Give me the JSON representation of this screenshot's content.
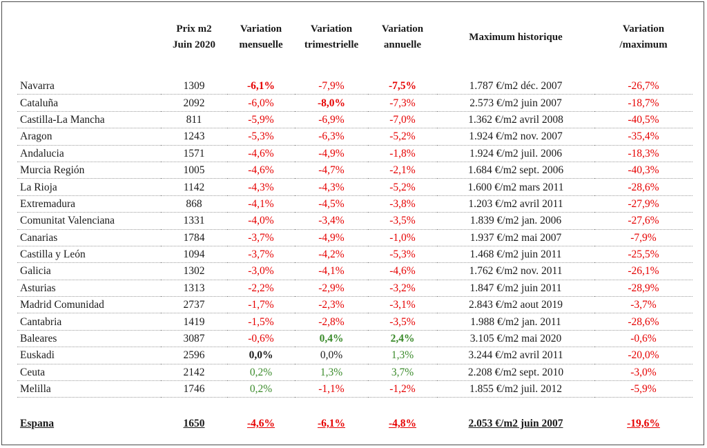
{
  "headers": {
    "region": "",
    "price": [
      "Prix m2",
      "Juin 2020"
    ],
    "monthly": [
      "Variation",
      "mensuelle"
    ],
    "quarterly": [
      "Variation",
      "trimestrielle"
    ],
    "annual": [
      "Variation",
      "annuelle"
    ],
    "max_hist": "Maximum historique",
    "var_max": [
      "Variation",
      "/maximum"
    ]
  },
  "rows": [
    {
      "region": "Navarra",
      "price": "1309",
      "monthly": "-6,1%",
      "quarterly": "-7,9%",
      "annual": "-7,5%",
      "max": "1.787 €/m2 déc. 2007",
      "var_max": "-26,7%",
      "colors": [
        "neg",
        "neg",
        "neg",
        "neg"
      ],
      "bold": [
        true,
        false,
        true,
        false
      ]
    },
    {
      "region": "Cataluña",
      "price": "2092",
      "monthly": "-6,0%",
      "quarterly": "-8,0%",
      "annual": "-7,3%",
      "max": "2.573 €/m2 juin 2007",
      "var_max": "-18,7%",
      "colors": [
        "neg",
        "neg",
        "neg",
        "neg"
      ],
      "bold": [
        false,
        true,
        false,
        false
      ]
    },
    {
      "region": "Castilla-La Mancha",
      "price": "811",
      "monthly": "-5,9%",
      "quarterly": "-6,9%",
      "annual": "-7,0%",
      "max": "1.362 €/m2 avril 2008",
      "var_max": "-40,5%",
      "colors": [
        "neg",
        "neg",
        "neg",
        "neg"
      ],
      "bold": [
        false,
        false,
        false,
        false
      ]
    },
    {
      "region": "Aragon",
      "price": "1243",
      "monthly": "-5,3%",
      "quarterly": "-6,3%",
      "annual": "-5,2%",
      "max": "1.924 €/m2 nov. 2007",
      "var_max": "-35,4%",
      "colors": [
        "neg",
        "neg",
        "neg",
        "neg"
      ],
      "bold": [
        false,
        false,
        false,
        false
      ]
    },
    {
      "region": "Andalucia",
      "price": "1571",
      "monthly": "-4,6%",
      "quarterly": "-4,9%",
      "annual": "-1,8%",
      "max": "1.924 €/m2 juil. 2006",
      "var_max": "-18,3%",
      "colors": [
        "neg",
        "neg",
        "neg",
        "neg"
      ],
      "bold": [
        false,
        false,
        false,
        false
      ]
    },
    {
      "region": "Murcia Región",
      "price": "1005",
      "monthly": "-4,6%",
      "quarterly": "-4,7%",
      "annual": "-2,1%",
      "max": "1.684 €/m2 sept. 2006",
      "var_max": "-40,3%",
      "colors": [
        "neg",
        "neg",
        "neg",
        "neg"
      ],
      "bold": [
        false,
        false,
        false,
        false
      ]
    },
    {
      "region": "La Rioja",
      "price": "1142",
      "monthly": "-4,3%",
      "quarterly": "-4,3%",
      "annual": "-5,2%",
      "max": "1.600 €/m2 mars 2011",
      "var_max": "-28,6%",
      "colors": [
        "neg",
        "neg",
        "neg",
        "neg"
      ],
      "bold": [
        false,
        false,
        false,
        false
      ]
    },
    {
      "region": "Extremadura",
      "price": "868",
      "monthly": "-4,1%",
      "quarterly": "-4,5%",
      "annual": "-3,8%",
      "max": "1.203 €/m2 avril 2011",
      "var_max": "-27,9%",
      "colors": [
        "neg",
        "neg",
        "neg",
        "neg"
      ],
      "bold": [
        false,
        false,
        false,
        false
      ]
    },
    {
      "region": "Comunitat Valenciana",
      "price": "1331",
      "monthly": "-4,0%",
      "quarterly": "-3,4%",
      "annual": "-3,5%",
      "max": "1.839 €/m2 jan. 2006",
      "var_max": "-27,6%",
      "colors": [
        "neg",
        "neg",
        "neg",
        "neg"
      ],
      "bold": [
        false,
        false,
        false,
        false
      ]
    },
    {
      "region": "Canarias",
      "price": "1784",
      "monthly": "-3,7%",
      "quarterly": "-4,9%",
      "annual": "-1,0%",
      "max": "1.937 €/m2 mai 2007",
      "var_max": "-7,9%",
      "colors": [
        "neg",
        "neg",
        "neg",
        "neg"
      ],
      "bold": [
        false,
        false,
        false,
        false
      ]
    },
    {
      "region": "Castilla y León",
      "price": "1094",
      "monthly": "-3,7%",
      "quarterly": "-4,2%",
      "annual": "-5,3%",
      "max": "1.468 €/m2 juin 2011",
      "var_max": "-25,5%",
      "colors": [
        "neg",
        "neg",
        "neg",
        "neg"
      ],
      "bold": [
        false,
        false,
        false,
        false
      ]
    },
    {
      "region": "Galicia",
      "price": "1302",
      "monthly": "-3,0%",
      "quarterly": "-4,1%",
      "annual": "-4,6%",
      "max": "1.762 €/m2 nov. 2011",
      "var_max": "-26,1%",
      "colors": [
        "neg",
        "neg",
        "neg",
        "neg"
      ],
      "bold": [
        false,
        false,
        false,
        false
      ]
    },
    {
      "region": "Asturias",
      "price": "1313",
      "monthly": "-2,2%",
      "quarterly": "-2,9%",
      "annual": "-3,2%",
      "max": "1.847 €/m2 juin 2011",
      "var_max": "-28,9%",
      "colors": [
        "neg",
        "neg",
        "neg",
        "neg"
      ],
      "bold": [
        false,
        false,
        false,
        false
      ]
    },
    {
      "region": "Madrid Comunidad",
      "price": "2737",
      "monthly": "-1,7%",
      "quarterly": "-2,3%",
      "annual": "-3,1%",
      "max": "2.843 €/m2 aout 2019",
      "var_max": "-3,7%",
      "colors": [
        "neg",
        "neg",
        "neg",
        "neg"
      ],
      "bold": [
        false,
        false,
        false,
        false
      ]
    },
    {
      "region": "Cantabria",
      "price": "1419",
      "monthly": "-1,5%",
      "quarterly": "-2,8%",
      "annual": "-3,5%",
      "max": "1.988 €/m2 jan. 2011",
      "var_max": "-28,6%",
      "colors": [
        "neg",
        "neg",
        "neg",
        "neg"
      ],
      "bold": [
        false,
        false,
        false,
        false
      ]
    },
    {
      "region": "Baleares",
      "price": "3087",
      "monthly": "-0,6%",
      "quarterly": "0,4%",
      "annual": "2,4%",
      "max": "3.105 €/m2 mai 2020",
      "var_max": "-0,6%",
      "colors": [
        "neg",
        "pos",
        "pos",
        "neg"
      ],
      "bold": [
        false,
        true,
        true,
        false
      ]
    },
    {
      "region": "Euskadi",
      "price": "2596",
      "monthly": "0,0%",
      "quarterly": "0,0%",
      "annual": "1,3%",
      "max": "3.244 €/m2 avril 2011",
      "var_max": "-20,0%",
      "colors": [
        "zero",
        "zero",
        "pos",
        "neg"
      ],
      "bold": [
        true,
        false,
        false,
        false
      ]
    },
    {
      "region": "Ceuta",
      "price": "2142",
      "monthly": "0,2%",
      "quarterly": "1,3%",
      "annual": "3,7%",
      "max": "2.208 €/m2 sept. 2010",
      "var_max": "-3,0%",
      "colors": [
        "pos",
        "pos",
        "pos",
        "neg"
      ],
      "bold": [
        false,
        false,
        false,
        false
      ]
    },
    {
      "region": "Melilla",
      "price": "1746",
      "monthly": "0,2%",
      "quarterly": "-1,1%",
      "annual": "-1,2%",
      "max": "1.855 €/m2 juil. 2012",
      "var_max": "-5,9%",
      "colors": [
        "pos",
        "neg",
        "neg",
        "neg"
      ],
      "bold": [
        false,
        false,
        false,
        false
      ]
    }
  ],
  "total": {
    "region": "Espana",
    "price": "1650",
    "monthly": "-4,6%",
    "quarterly": "-6,1%",
    "annual": "-4,8%",
    "max": "2.053 €/m2 juin 2007",
    "var_max": "-19,6%"
  }
}
